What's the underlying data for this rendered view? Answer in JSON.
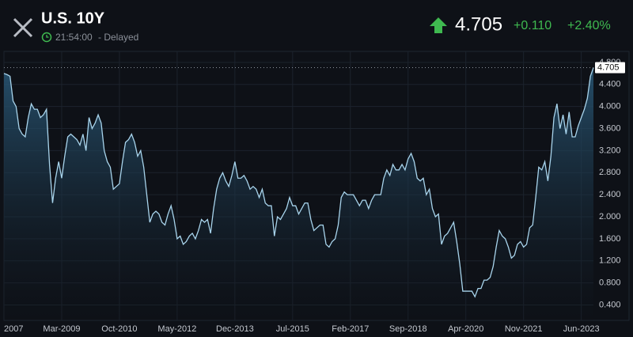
{
  "header": {
    "title": "U.S. 10Y",
    "time": "21:54:00",
    "status": "- Delayed",
    "price": "4.705",
    "change": "+0.110",
    "change_pct": "+2.40%"
  },
  "chart_data": {
    "type": "area",
    "color": "#a8d4ec",
    "grid": true,
    "xlim": [
      "2007-08",
      "2023-10"
    ],
    "ylim": [
      0.12,
      5.0
    ],
    "yticks": [
      {
        "value": 0.4,
        "label": "0.400"
      },
      {
        "value": 0.8,
        "label": "0.800"
      },
      {
        "value": 1.2,
        "label": "1.200"
      },
      {
        "value": 1.6,
        "label": "1.600"
      },
      {
        "value": 2.0,
        "label": "2.000"
      },
      {
        "value": 2.4,
        "label": "2.400"
      },
      {
        "value": 2.8,
        "label": "2.800"
      },
      {
        "value": 3.2,
        "label": "3.200"
      },
      {
        "value": 3.6,
        "label": "3.600"
      },
      {
        "value": 4.0,
        "label": "4.000"
      },
      {
        "value": 4.4,
        "label": "4.400"
      },
      {
        "value": 4.8,
        "label": "4.800"
      }
    ],
    "xticks": [
      {
        "value": "2007-08",
        "label": "2007"
      },
      {
        "value": "2009-03",
        "label": "Mar-2009"
      },
      {
        "value": "2010-10",
        "label": "Oct-2010"
      },
      {
        "value": "2012-05",
        "label": "May-2012"
      },
      {
        "value": "2013-12",
        "label": "Dec-2013"
      },
      {
        "value": "2015-07",
        "label": "Jul-2015"
      },
      {
        "value": "2017-02",
        "label": "Feb-2017"
      },
      {
        "value": "2018-09",
        "label": "Sep-2018"
      },
      {
        "value": "2020-04",
        "label": "Apr-2020"
      },
      {
        "value": "2021-11",
        "label": "Nov-2021"
      },
      {
        "value": "2023-06",
        "label": "Jun-2023"
      }
    ],
    "x": [
      "2007-08",
      "2007-09",
      "2007-10",
      "2007-11",
      "2007-12",
      "2008-01",
      "2008-02",
      "2008-03",
      "2008-04",
      "2008-05",
      "2008-06",
      "2008-07",
      "2008-08",
      "2008-09",
      "2008-10",
      "2008-11",
      "2008-12",
      "2009-01",
      "2009-02",
      "2009-03",
      "2009-04",
      "2009-05",
      "2009-06",
      "2009-07",
      "2009-08",
      "2009-09",
      "2009-10",
      "2009-11",
      "2009-12",
      "2010-01",
      "2010-02",
      "2010-03",
      "2010-04",
      "2010-05",
      "2010-06",
      "2010-07",
      "2010-08",
      "2010-09",
      "2010-10",
      "2010-11",
      "2010-12",
      "2011-01",
      "2011-02",
      "2011-03",
      "2011-04",
      "2011-05",
      "2011-06",
      "2011-07",
      "2011-08",
      "2011-09",
      "2011-10",
      "2011-11",
      "2011-12",
      "2012-01",
      "2012-02",
      "2012-03",
      "2012-04",
      "2012-05",
      "2012-06",
      "2012-07",
      "2012-08",
      "2012-09",
      "2012-10",
      "2012-11",
      "2012-12",
      "2013-01",
      "2013-02",
      "2013-03",
      "2013-04",
      "2013-05",
      "2013-06",
      "2013-07",
      "2013-08",
      "2013-09",
      "2013-10",
      "2013-11",
      "2013-12",
      "2014-01",
      "2014-02",
      "2014-03",
      "2014-04",
      "2014-05",
      "2014-06",
      "2014-07",
      "2014-08",
      "2014-09",
      "2014-10",
      "2014-11",
      "2014-12",
      "2015-01",
      "2015-02",
      "2015-03",
      "2015-04",
      "2015-05",
      "2015-06",
      "2015-07",
      "2015-08",
      "2015-09",
      "2015-10",
      "2015-11",
      "2015-12",
      "2016-01",
      "2016-02",
      "2016-03",
      "2016-04",
      "2016-05",
      "2016-06",
      "2016-07",
      "2016-08",
      "2016-09",
      "2016-10",
      "2016-11",
      "2016-12",
      "2017-01",
      "2017-02",
      "2017-03",
      "2017-04",
      "2017-05",
      "2017-06",
      "2017-07",
      "2017-08",
      "2017-09",
      "2017-10",
      "2017-11",
      "2017-12",
      "2018-01",
      "2018-02",
      "2018-03",
      "2018-04",
      "2018-05",
      "2018-06",
      "2018-07",
      "2018-08",
      "2018-09",
      "2018-10",
      "2018-11",
      "2018-12",
      "2019-01",
      "2019-02",
      "2019-03",
      "2019-04",
      "2019-05",
      "2019-06",
      "2019-07",
      "2019-08",
      "2019-09",
      "2019-10",
      "2019-11",
      "2019-12",
      "2020-01",
      "2020-02",
      "2020-03",
      "2020-04",
      "2020-05",
      "2020-06",
      "2020-07",
      "2020-08",
      "2020-09",
      "2020-10",
      "2020-11",
      "2020-12",
      "2021-01",
      "2021-02",
      "2021-03",
      "2021-04",
      "2021-05",
      "2021-06",
      "2021-07",
      "2021-08",
      "2021-09",
      "2021-10",
      "2021-11",
      "2021-12",
      "2022-01",
      "2022-02",
      "2022-03",
      "2022-04",
      "2022-05",
      "2022-06",
      "2022-07",
      "2022-08",
      "2022-09",
      "2022-10",
      "2022-11",
      "2022-12",
      "2023-01",
      "2023-02",
      "2023-03",
      "2023-04",
      "2023-05",
      "2023-06",
      "2023-07",
      "2023-08",
      "2023-09",
      "2023-10"
    ],
    "values": [
      4.6,
      4.58,
      4.55,
      4.1,
      4.0,
      3.6,
      3.5,
      3.45,
      3.8,
      4.05,
      3.95,
      3.95,
      3.8,
      3.85,
      3.95,
      2.95,
      2.25,
      2.7,
      3.0,
      2.7,
      3.1,
      3.45,
      3.5,
      3.45,
      3.4,
      3.3,
      3.5,
      3.2,
      3.8,
      3.6,
      3.7,
      3.85,
      3.7,
      3.2,
      3.0,
      2.9,
      2.5,
      2.55,
      2.6,
      3.0,
      3.35,
      3.4,
      3.5,
      3.35,
      3.1,
      3.2,
      2.9,
      2.4,
      1.9,
      2.05,
      2.1,
      2.05,
      1.9,
      1.85,
      2.05,
      2.2,
      1.95,
      1.6,
      1.65,
      1.5,
      1.55,
      1.65,
      1.7,
      1.6,
      1.75,
      1.95,
      1.9,
      1.95,
      1.7,
      2.15,
      2.5,
      2.7,
      2.8,
      2.65,
      2.55,
      2.75,
      3.0,
      2.7,
      2.7,
      2.75,
      2.65,
      2.5,
      2.55,
      2.5,
      2.35,
      2.5,
      2.25,
      2.2,
      2.2,
      1.65,
      2.0,
      1.95,
      2.05,
      2.15,
      2.35,
      2.2,
      2.2,
      2.05,
      2.15,
      2.25,
      2.25,
      1.95,
      1.75,
      1.8,
      1.85,
      1.85,
      1.5,
      1.45,
      1.55,
      1.6,
      1.85,
      2.35,
      2.45,
      2.4,
      2.4,
      2.4,
      2.3,
      2.2,
      2.3,
      2.3,
      2.15,
      2.3,
      2.4,
      2.4,
      2.4,
      2.7,
      2.85,
      2.75,
      2.95,
      2.85,
      2.85,
      2.95,
      2.85,
      3.05,
      3.15,
      3.0,
      2.7,
      2.65,
      2.7,
      2.4,
      2.5,
      2.15,
      2.0,
      2.05,
      1.5,
      1.65,
      1.7,
      1.8,
      1.9,
      1.55,
      1.15,
      0.65,
      0.65,
      0.65,
      0.65,
      0.55,
      0.7,
      0.7,
      0.85,
      0.85,
      0.9,
      1.1,
      1.45,
      1.75,
      1.65,
      1.6,
      1.45,
      1.25,
      1.3,
      1.5,
      1.55,
      1.45,
      1.5,
      1.8,
      1.85,
      2.35,
      2.9,
      2.85,
      3.0,
      2.65,
      3.1,
      3.8,
      4.05,
      3.6,
      3.85,
      3.5,
      3.9,
      3.45,
      3.45,
      3.65,
      3.8,
      3.95,
      4.15,
      4.55,
      4.705
    ]
  }
}
